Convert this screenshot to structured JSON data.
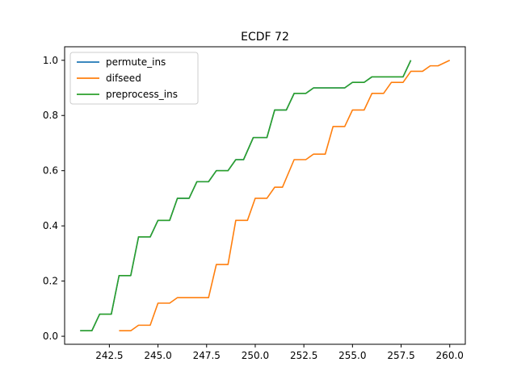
{
  "chart_data": {
    "type": "line",
    "title": "ECDF 72",
    "xlabel": "",
    "ylabel": "",
    "xlim": [
      40.2,
      60.8
    ],
    "ylim": [
      -0.029,
      1.049
    ],
    "x_tick_values": [
      42.5,
      45.0,
      47.5,
      50.0,
      52.5,
      55.0,
      57.5,
      60.0
    ],
    "x_tick_labels": [
      "242.5",
      "245.0",
      "247.5",
      "250.0",
      "252.5",
      "255.0",
      "257.5",
      "260.0"
    ],
    "y_tick_values": [
      0.0,
      0.2,
      0.4,
      0.6,
      0.8,
      1.0
    ],
    "y_tick_labels": [
      "0.0",
      "0.2",
      "0.4",
      "0.6",
      "0.8",
      "1.0"
    ],
    "grid": false,
    "legend_position": "upper-left",
    "series": [
      {
        "name": "permute_ins",
        "color": "#1f77b4",
        "x": [
          41.0,
          41.6,
          42.0,
          42.6,
          43.0,
          43.6,
          44.0,
          44.6,
          45.0,
          45.6,
          46.0,
          46.6,
          47.0,
          47.6,
          48.0,
          48.6,
          49.0,
          49.4,
          49.9,
          50.6,
          51.0,
          51.6,
          52.0,
          52.6,
          53.0,
          54.6,
          55.0,
          55.6,
          56.0,
          56.6,
          57.0,
          57.6,
          58.0
        ],
        "y": [
          0.02,
          0.02,
          0.08,
          0.08,
          0.22,
          0.22,
          0.36,
          0.36,
          0.42,
          0.42,
          0.5,
          0.5,
          0.56,
          0.56,
          0.6,
          0.6,
          0.64,
          0.64,
          0.72,
          0.72,
          0.82,
          0.82,
          0.88,
          0.88,
          0.9,
          0.9,
          0.92,
          0.92,
          0.94,
          0.94,
          0.94,
          0.94,
          1.0
        ]
      },
      {
        "name": "difseed",
        "color": "#ff7f0e",
        "x": [
          43.0,
          43.6,
          44.0,
          44.6,
          45.0,
          45.6,
          46.0,
          46.6,
          47.0,
          47.6,
          48.0,
          48.6,
          49.0,
          49.6,
          50.0,
          50.6,
          51.0,
          51.4,
          52.0,
          52.6,
          53.0,
          53.6,
          54.0,
          54.6,
          55.0,
          55.6,
          56.0,
          56.6,
          57.0,
          57.6,
          58.0,
          58.6,
          59.0,
          59.4,
          60.0
        ],
        "y": [
          0.02,
          0.02,
          0.04,
          0.04,
          0.12,
          0.12,
          0.14,
          0.14,
          0.14,
          0.14,
          0.26,
          0.26,
          0.42,
          0.42,
          0.5,
          0.5,
          0.54,
          0.54,
          0.64,
          0.64,
          0.66,
          0.66,
          0.76,
          0.76,
          0.82,
          0.82,
          0.88,
          0.88,
          0.92,
          0.92,
          0.96,
          0.96,
          0.98,
          0.98,
          1.0
        ]
      },
      {
        "name": "preprocess_ins",
        "color": "#2ca02c",
        "x": [
          41.0,
          41.6,
          42.0,
          42.6,
          43.0,
          43.6,
          44.0,
          44.6,
          45.0,
          45.6,
          46.0,
          46.6,
          47.0,
          47.6,
          48.0,
          48.6,
          49.0,
          49.4,
          49.9,
          50.6,
          51.0,
          51.6,
          52.0,
          52.6,
          53.0,
          54.6,
          55.0,
          55.6,
          56.0,
          56.6,
          57.0,
          57.6,
          58.0
        ],
        "y": [
          0.02,
          0.02,
          0.08,
          0.08,
          0.22,
          0.22,
          0.36,
          0.36,
          0.42,
          0.42,
          0.5,
          0.5,
          0.56,
          0.56,
          0.6,
          0.6,
          0.64,
          0.64,
          0.72,
          0.72,
          0.82,
          0.82,
          0.88,
          0.88,
          0.9,
          0.9,
          0.92,
          0.92,
          0.94,
          0.94,
          0.94,
          0.94,
          1.0
        ]
      }
    ]
  }
}
